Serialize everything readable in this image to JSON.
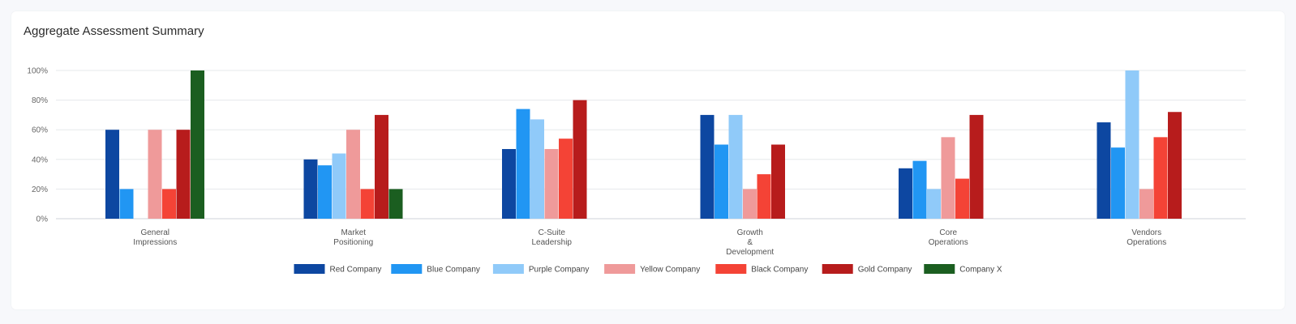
{
  "card": {
    "title": "Aggregate Assessment Summary"
  },
  "chart_data": {
    "type": "bar",
    "title": "Aggregate Assessment Summary",
    "categories": [
      [
        "General",
        "Impressions"
      ],
      [
        "Market",
        "Positioning"
      ],
      [
        "C-Suite",
        "Leadership"
      ],
      [
        "Growth",
        "&",
        "Development"
      ],
      [
        "Core",
        "Operations"
      ],
      [
        "Vendors",
        "Operations"
      ]
    ],
    "y_ticks": [
      "0%",
      "20%",
      "40%",
      "60%",
      "80%",
      "100%"
    ],
    "ylim": [
      0,
      100
    ],
    "grid": true,
    "legend_position": "bottom",
    "series": [
      {
        "name": "Red Company",
        "color": "#0d47a1",
        "values": [
          60,
          40,
          47,
          70,
          34,
          65
        ]
      },
      {
        "name": "Blue Company",
        "color": "#2196f3",
        "values": [
          20,
          36,
          74,
          50,
          39,
          48
        ]
      },
      {
        "name": "Purple Company",
        "color": "#90caf9",
        "values": [
          0,
          44,
          67,
          70,
          20,
          100
        ]
      },
      {
        "name": "Yellow Company",
        "color": "#ef9a9a",
        "values": [
          60,
          60,
          47,
          20,
          55,
          20
        ]
      },
      {
        "name": "Black Company",
        "color": "#f44336",
        "values": [
          20,
          20,
          54,
          30,
          27,
          55
        ]
      },
      {
        "name": "Gold Company",
        "color": "#b71c1c",
        "values": [
          60,
          70,
          80,
          50,
          70,
          72
        ]
      },
      {
        "name": "Company X",
        "color": "#1b5e20",
        "values": [
          100,
          20,
          null,
          null,
          null,
          null
        ]
      }
    ]
  }
}
